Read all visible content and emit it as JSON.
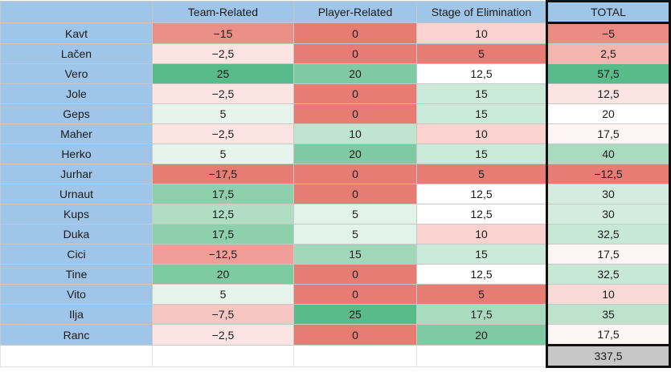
{
  "header": {
    "corner": "",
    "team_related": "Team-Related",
    "player_related": "Player-Related",
    "stage": "Stage of Elimination",
    "total": "TOTAL"
  },
  "rows": [
    {
      "name": "Kavt",
      "team": "−15",
      "player": "0",
      "stage": "10",
      "total": "−5",
      "colors": {
        "team": "#ec8f86",
        "player": "#e67c73",
        "stage": "#fad2cf",
        "total": "#ea8c83"
      }
    },
    {
      "name": "Lačen",
      "team": "−2,5",
      "player": "0",
      "stage": "5",
      "total": "2,5",
      "colors": {
        "team": "#fbe4e2",
        "player": "#e67c73",
        "stage": "#e67c73",
        "total": "#f3b6b0"
      }
    },
    {
      "name": "Vero",
      "team": "25",
      "player": "20",
      "stage": "12,5",
      "total": "57,5",
      "colors": {
        "team": "#57bb8a",
        "player": "#7fcaa2",
        "stage": "#ffffff",
        "total": "#57bb8a"
      }
    },
    {
      "name": "Jole",
      "team": "−2,5",
      "player": "0",
      "stage": "15",
      "total": "12,5",
      "colors": {
        "team": "#fbe4e2",
        "player": "#e67c73",
        "stage": "#cbe9d8",
        "total": "#fbe4e2"
      }
    },
    {
      "name": "Geps",
      "team": "5",
      "player": "0",
      "stage": "15",
      "total": "20",
      "colors": {
        "team": "#e6f4ec",
        "player": "#e67c73",
        "stage": "#cbe9d8",
        "total": "#ffffff"
      }
    },
    {
      "name": "Maher",
      "team": "−2,5",
      "player": "10",
      "stage": "10",
      "total": "17,5",
      "colors": {
        "team": "#fbe4e2",
        "player": "#bfe4cf",
        "stage": "#fad2cf",
        "total": "#fef6f5"
      }
    },
    {
      "name": "Herko",
      "team": "5",
      "player": "20",
      "stage": "15",
      "total": "40",
      "colors": {
        "team": "#e6f4ec",
        "player": "#7fcaa2",
        "stage": "#cbe9d8",
        "total": "#a9dbbf"
      }
    },
    {
      "name": "Jurhar",
      "team": "−17,5",
      "player": "0",
      "stage": "5",
      "total": "−12,5",
      "colors": {
        "team": "#e67c73",
        "player": "#e67c73",
        "stage": "#e67c73",
        "total": "#e67c73"
      }
    },
    {
      "name": "Urnaut",
      "team": "17,5",
      "player": "0",
      "stage": "12,5",
      "total": "30",
      "colors": {
        "team": "#8ed0ac",
        "player": "#e67c73",
        "stage": "#ffffff",
        "total": "#d3ecdf"
      }
    },
    {
      "name": "Kups",
      "team": "12,5",
      "player": "5",
      "stage": "12,5",
      "total": "30",
      "colors": {
        "team": "#b0ddc4",
        "player": "#e2f3ea",
        "stage": "#ffffff",
        "total": "#d3ecdf"
      }
    },
    {
      "name": "Duka",
      "team": "17,5",
      "player": "5",
      "stage": "10",
      "total": "32,5",
      "colors": {
        "team": "#8ed0ac",
        "player": "#e2f3ea",
        "stage": "#fad2cf",
        "total": "#c8e8d6"
      }
    },
    {
      "name": "Cici",
      "team": "−12,5",
      "player": "15",
      "stage": "15",
      "total": "17,5",
      "colors": {
        "team": "#f09e97",
        "player": "#a2d8ba",
        "stage": "#cbe9d8",
        "total": "#fef6f5"
      }
    },
    {
      "name": "Tine",
      "team": "20",
      "player": "0",
      "stage": "12,5",
      "total": "32,5",
      "colors": {
        "team": "#7ecaa1",
        "player": "#e67c73",
        "stage": "#ffffff",
        "total": "#c8e8d6"
      }
    },
    {
      "name": "Vito",
      "team": "5",
      "player": "0",
      "stage": "5",
      "total": "10",
      "colors": {
        "team": "#e6f4ec",
        "player": "#e67c73",
        "stage": "#e67c73",
        "total": "#f9dad7"
      }
    },
    {
      "name": "Ilja",
      "team": "−7,5",
      "player": "25",
      "stage": "17,5",
      "total": "35",
      "colors": {
        "team": "#f7c6c2",
        "player": "#57bb8a",
        "stage": "#a9dbbf",
        "total": "#bde3cd"
      }
    },
    {
      "name": "Ranc",
      "team": "−2,5",
      "player": "0",
      "stage": "20",
      "total": "17,5",
      "colors": {
        "team": "#fbe4e2",
        "player": "#e67c73",
        "stage": "#7fcaa2",
        "total": "#fef6f5"
      }
    }
  ],
  "summary": {
    "total": "337,5"
  },
  "colors": {
    "header_blue": "#9fc5e8",
    "total_sum_gray": "#c7c7c7",
    "border": "#c8c8c8"
  }
}
